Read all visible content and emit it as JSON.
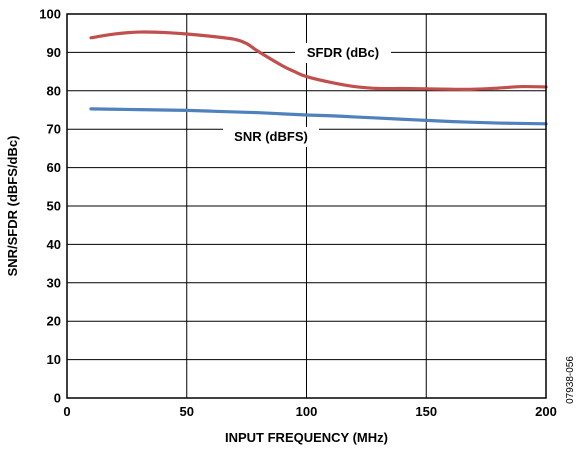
{
  "chart_data": {
    "type": "line",
    "title": "",
    "xlabel": "INPUT FREQUENCY (MHz)",
    "ylabel": "SNR/SFDR (dBFS/dBc)",
    "xlim": [
      0,
      200
    ],
    "ylim": [
      0,
      100
    ],
    "x_ticks": [
      0,
      50,
      100,
      150,
      200
    ],
    "y_ticks": [
      0,
      10,
      20,
      30,
      40,
      50,
      60,
      70,
      80,
      90,
      100
    ],
    "grid": true,
    "legend": "none",
    "series": [
      {
        "name": "SFDR (dBc)",
        "color": "#c0504d",
        "x": [
          10,
          20,
          30,
          40,
          50,
          60,
          70,
          75,
          80,
          90,
          95,
          100,
          110,
          120,
          130,
          140,
          150,
          160,
          170,
          180,
          190,
          200
        ],
        "values": [
          93.8,
          94.8,
          95.3,
          95.2,
          94.8,
          94.2,
          93.4,
          92.3,
          90.2,
          86.5,
          85,
          83.7,
          82.2,
          81.1,
          80.6,
          80.6,
          80.5,
          80.4,
          80.4,
          80.7,
          81.1,
          81
        ]
      },
      {
        "name": "SNR (dBFS)",
        "color": "#4f81bd",
        "x": [
          10,
          20,
          30,
          40,
          50,
          60,
          70,
          80,
          90,
          100,
          110,
          120,
          130,
          140,
          150,
          160,
          170,
          180,
          190,
          200
        ],
        "values": [
          75.3,
          75.2,
          75.1,
          75,
          74.9,
          74.7,
          74.5,
          74.3,
          74,
          73.7,
          73.5,
          73.2,
          72.9,
          72.6,
          72.3,
          72,
          71.8,
          71.6,
          71.5,
          71.4
        ]
      }
    ]
  },
  "figure_id": "07938-056"
}
